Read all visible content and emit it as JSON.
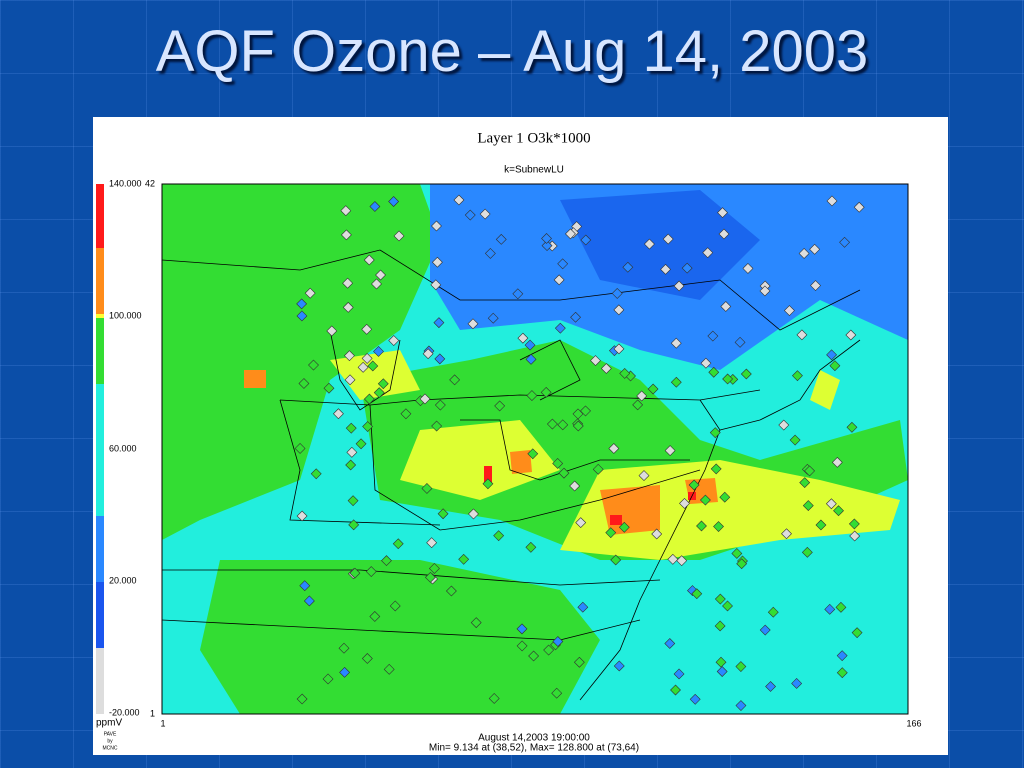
{
  "slide": {
    "title": "AQF Ozone – Aug 14, 2003"
  },
  "plot": {
    "title": "Layer 1  O3k*1000",
    "subtitle": "k=SubnewLU",
    "colorbar_labels": [
      "140.000",
      "100.000",
      "60.000",
      "20.000",
      "-20.000"
    ],
    "unit": "ppmV",
    "credit": [
      "PAVE",
      "by",
      "MCNC"
    ],
    "y_axis_labels": [
      "42",
      "1"
    ],
    "x_axis_labels": [
      "1",
      "166"
    ],
    "footer": [
      "August 14,2003 19:00:00",
      "Min=   9.134 at (38,52), Max= 128.800 at (73,64)"
    ]
  }
}
